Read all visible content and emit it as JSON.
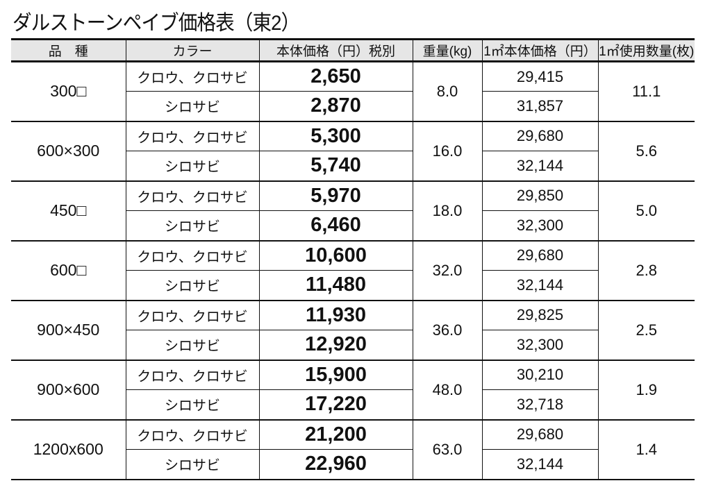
{
  "title": "ダルストーンペイブ価格表（東2）",
  "headers": [
    "品　種",
    "カラー",
    "本体価格（円）税別",
    "重量(kg)",
    "1㎡本体価格（円）",
    "1㎡使用数量(枚)"
  ],
  "colors": {
    "header_bg": "#e6e6e6",
    "border": "#111111"
  },
  "rows": [
    {
      "product": "300□",
      "weight": "8.0",
      "qty": "11.1",
      "variants": [
        {
          "color": "クロウ、クロサビ",
          "price": "2,650",
          "sqm_price": "29,415"
        },
        {
          "color": "シロサビ",
          "price": "2,870",
          "sqm_price": "31,857"
        }
      ]
    },
    {
      "product": "600×300",
      "weight": "16.0",
      "qty": "5.6",
      "variants": [
        {
          "color": "クロウ、クロサビ",
          "price": "5,300",
          "sqm_price": "29,680"
        },
        {
          "color": "シロサビ",
          "price": "5,740",
          "sqm_price": "32,144"
        }
      ]
    },
    {
      "product": "450□",
      "weight": "18.0",
      "qty": "5.0",
      "variants": [
        {
          "color": "クロウ、クロサビ",
          "price": "5,970",
          "sqm_price": "29,850"
        },
        {
          "color": "シロサビ",
          "price": "6,460",
          "sqm_price": "32,300"
        }
      ]
    },
    {
      "product": "600□",
      "weight": "32.0",
      "qty": "2.8",
      "variants": [
        {
          "color": "クロウ、クロサビ",
          "price": "10,600",
          "sqm_price": "29,680"
        },
        {
          "color": "シロサビ",
          "price": "11,480",
          "sqm_price": "32,144"
        }
      ]
    },
    {
      "product": "900×450",
      "weight": "36.0",
      "qty": "2.5",
      "variants": [
        {
          "color": "クロウ、クロサビ",
          "price": "11,930",
          "sqm_price": "29,825"
        },
        {
          "color": "シロサビ",
          "price": "12,920",
          "sqm_price": "32,300"
        }
      ]
    },
    {
      "product": "900×600",
      "weight": "48.0",
      "qty": "1.9",
      "variants": [
        {
          "color": "クロウ、クロサビ",
          "price": "15,900",
          "sqm_price": "30,210"
        },
        {
          "color": "シロサビ",
          "price": "17,220",
          "sqm_price": "32,718"
        }
      ]
    },
    {
      "product": "1200x600",
      "weight": "63.0",
      "qty": "1.4",
      "variants": [
        {
          "color": "クロウ、クロサビ",
          "price": "21,200",
          "sqm_price": "29,680"
        },
        {
          "color": "シロサビ",
          "price": "22,960",
          "sqm_price": "32,144"
        }
      ]
    }
  ]
}
